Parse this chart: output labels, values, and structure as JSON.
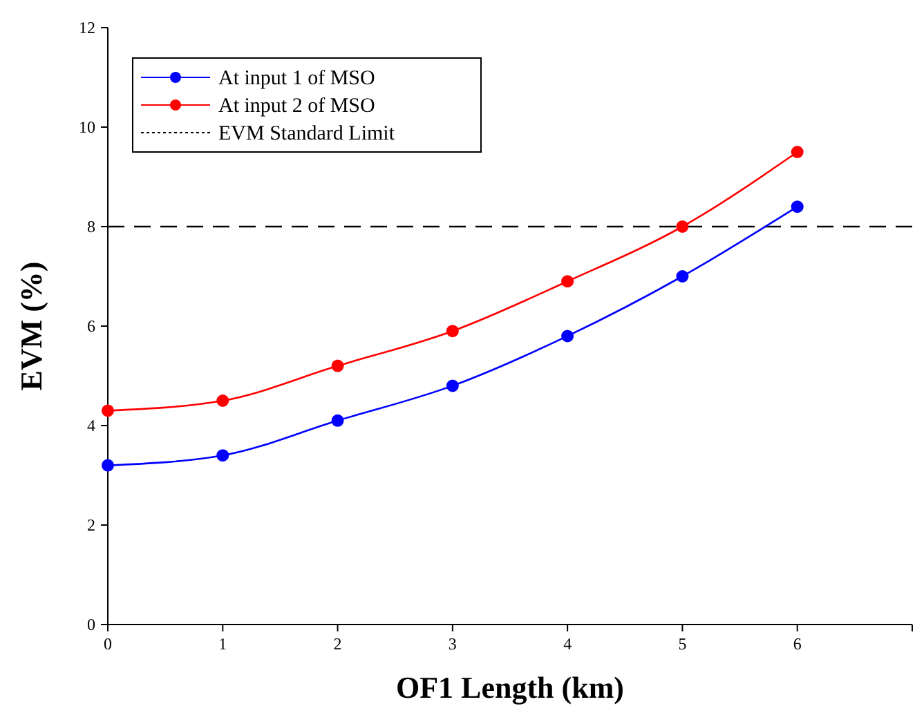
{
  "chart_data": {
    "type": "line",
    "xlabel": "OF1 Length (km)",
    "ylabel": "EVM (%)",
    "x": [
      0,
      1,
      2,
      3,
      4,
      5,
      6
    ],
    "series": [
      {
        "name": "At input 1 of MSO",
        "color": "#0000ff",
        "values": [
          3.2,
          3.4,
          4.1,
          4.8,
          5.8,
          7.0,
          8.4
        ]
      },
      {
        "name": "At input 2 of MSO",
        "color": "#ff0000",
        "values": [
          4.3,
          4.5,
          5.2,
          5.9,
          6.9,
          8.0,
          9.5
        ]
      }
    ],
    "xlim": [
      0,
      7
    ],
    "xticks": [
      0,
      1,
      2,
      3,
      4,
      5,
      6,
      {
        "value": 7,
        "label": null
      }
    ],
    "ylim": [
      0,
      12
    ],
    "yticks": [
      0,
      2,
      4,
      6,
      8,
      10,
      12
    ],
    "ref_lines": [
      {
        "axis": "y",
        "value": 8,
        "label": "EVM Standard Limit",
        "color": "#000000",
        "line_style": "dashed"
      }
    ],
    "marker": "circle",
    "line_style": "solid",
    "grid": false,
    "legend": "top left"
  }
}
